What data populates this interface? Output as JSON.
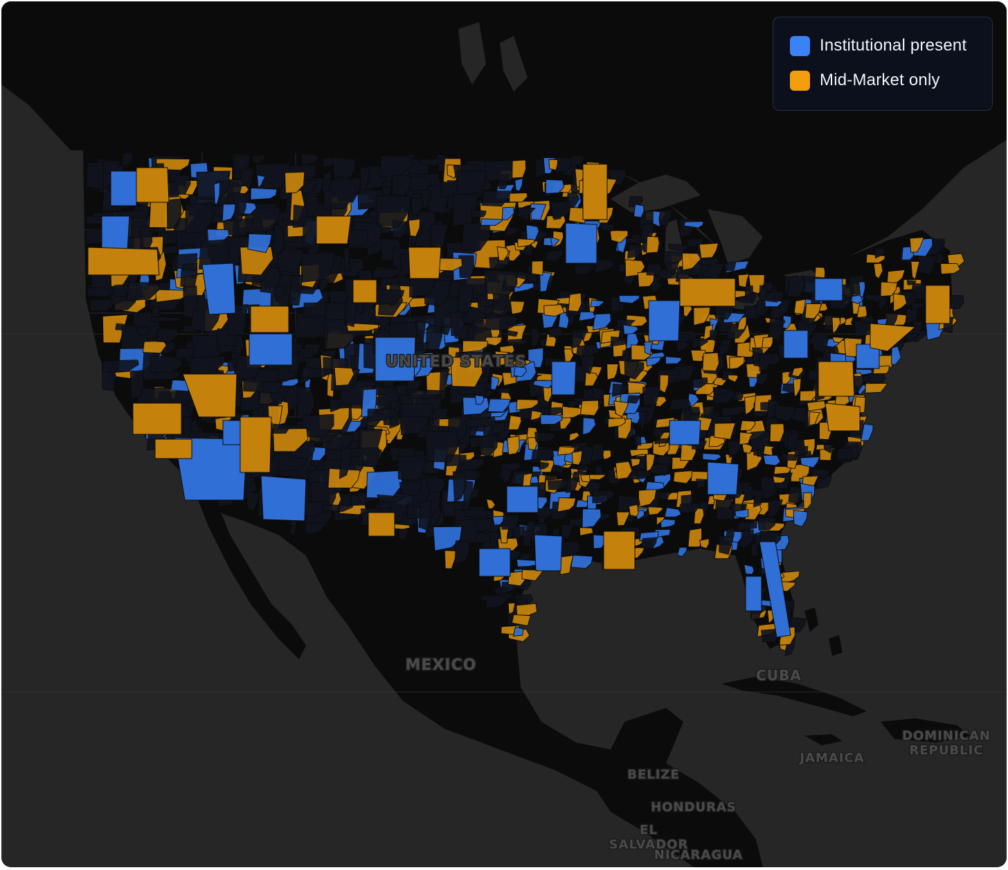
{
  "legend": {
    "items": [
      {
        "label": "Institutional present",
        "color": "#3b82f6"
      },
      {
        "label": "Mid-Market only",
        "color": "#f59e0b"
      }
    ]
  },
  "map": {
    "basemap": "dark",
    "land_color": "#0b0b0b",
    "ocean_color": "#262626",
    "region_fill_color": "#11141e",
    "category_colors": {
      "institutional": "#2f6fd6",
      "mid_market": "#c4820c"
    },
    "place_labels": [
      {
        "id": "united-states",
        "text": "UNITED STATES"
      },
      {
        "id": "mexico",
        "text": "MEXICO"
      },
      {
        "id": "cuba",
        "text": "CUBA"
      },
      {
        "id": "jamaica",
        "text": "JAMAICA"
      },
      {
        "id": "dominican-republic",
        "text": "DOMINICAN REPUBLIC"
      },
      {
        "id": "belize",
        "text": "BELIZE"
      },
      {
        "id": "honduras",
        "text": "HONDURAS"
      },
      {
        "id": "el-salvador",
        "text": "EL SALVADOR"
      },
      {
        "id": "nicaragua",
        "text": "NICARAGUA"
      }
    ]
  }
}
